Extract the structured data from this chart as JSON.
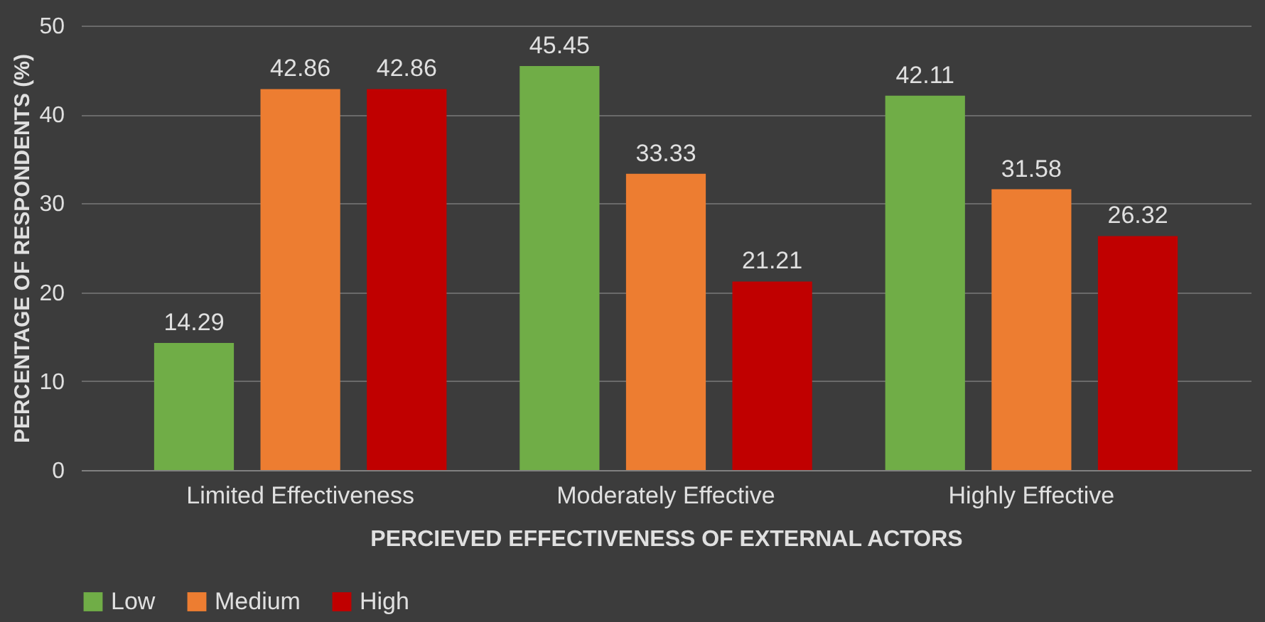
{
  "chart_data": {
    "type": "bar",
    "xlabel": "PERCIEVED EFFECTIVENESS OF EXTERNAL ACTORS",
    "ylabel": "PERCENTAGE OF RESPONDENTS (%)",
    "categories": [
      "Limited Effectiveness",
      "Moderately Effective",
      "Highly Effective"
    ],
    "series": [
      {
        "name": "Low",
        "color": "#70ad47",
        "values": [
          14.29,
          45.45,
          42.11
        ]
      },
      {
        "name": "Medium",
        "color": "#ed7d31",
        "values": [
          42.86,
          33.33,
          31.58
        ]
      },
      {
        "name": "High",
        "color": "#c00000",
        "values": [
          42.86,
          21.21,
          26.32
        ]
      }
    ],
    "ylim": [
      0,
      50
    ],
    "yticks": [
      0,
      10,
      20,
      30,
      40,
      50
    ],
    "grid": "y",
    "legend": "bottom",
    "data_labels": true
  }
}
